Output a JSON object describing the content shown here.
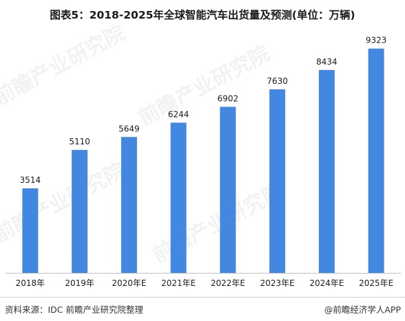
{
  "title": "图表5：2018-2025年全球智能汽车出货量及预测(单位：万辆)",
  "source": "资料来源：IDC 前瞻产业研究院整理",
  "brand": "@前瞻经济学人APP",
  "watermark": "前瞻产业研究院",
  "colors": {
    "bar": "#4287E0",
    "axis": "#bfbfbf",
    "text": "#1a1a1a"
  },
  "chart_data": {
    "type": "bar",
    "title": "图表5：2018-2025年全球智能汽车出货量及预测(单位：万辆)",
    "categories": [
      "2018年",
      "2019年",
      "2020年E",
      "2021年E",
      "2022年E",
      "2023年E",
      "2024年E",
      "2025年E"
    ],
    "values": [
      3514,
      5110,
      5649,
      6244,
      6902,
      7630,
      8434,
      9323
    ],
    "data_labels": [
      "3514",
      "5110",
      "5649",
      "6244",
      "6902",
      "7630",
      "8434",
      "9323"
    ],
    "xlabel": "",
    "ylabel": "",
    "ylim": [
      0,
      10000
    ],
    "grid": false,
    "legend": "none"
  }
}
